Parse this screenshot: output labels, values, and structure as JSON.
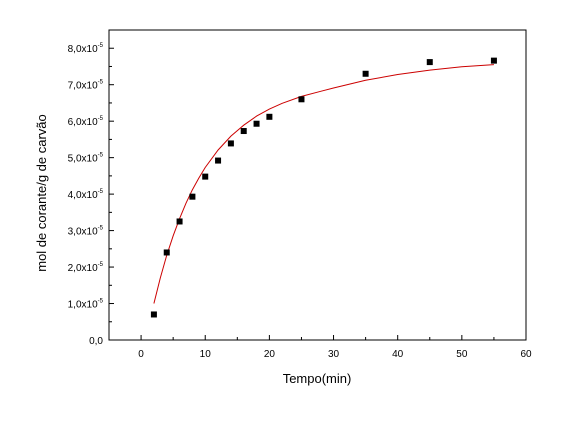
{
  "chart_data": {
    "type": "scatter",
    "title": "",
    "xlabel": "Tempo(min)",
    "ylabel": "mol de corante/g de carvão",
    "xlim": [
      -5,
      60
    ],
    "ylim": [
      0,
      8.5
    ],
    "x_ticks": [
      0,
      10,
      20,
      30,
      40,
      50,
      60
    ],
    "x_tick_labels": [
      "0",
      "10",
      "20",
      "30",
      "40",
      "50",
      "60"
    ],
    "y_ticks": [
      0,
      1,
      2,
      3,
      4,
      5,
      6,
      7,
      8
    ],
    "y_tick_labels": [
      {
        "mantissa": "0,0",
        "exp": ""
      },
      {
        "mantissa": "1,0x10",
        "exp": "-5"
      },
      {
        "mantissa": "2,0x10",
        "exp": "-5"
      },
      {
        "mantissa": "3,0x10",
        "exp": "-5"
      },
      {
        "mantissa": "4,0x10",
        "exp": "-5"
      },
      {
        "mantissa": "5,0x10",
        "exp": "-5"
      },
      {
        "mantissa": "6,0x10",
        "exp": "-5"
      },
      {
        "mantissa": "7,0x10",
        "exp": "-5"
      },
      {
        "mantissa": "8,0x10",
        "exp": "-5"
      }
    ],
    "y_scale_factor": "1e-5",
    "grid": false,
    "series": [
      {
        "type": "scatter",
        "marker": "square",
        "color": "#000000",
        "x": [
          2,
          4,
          6,
          8,
          10,
          12,
          14,
          16,
          18,
          20,
          25,
          35,
          45,
          55
        ],
        "y": [
          0.7,
          2.4,
          3.25,
          3.93,
          4.48,
          4.92,
          5.39,
          5.73,
          5.93,
          6.12,
          6.6,
          7.3,
          7.62,
          7.66
        ]
      },
      {
        "type": "line",
        "color": "#cc0000",
        "x": [
          2,
          3,
          4,
          5,
          6,
          7,
          8,
          9,
          10,
          12,
          14,
          16,
          18,
          20,
          22,
          25,
          28,
          30,
          35,
          40,
          45,
          50,
          55
        ],
        "y": [
          1.0,
          1.7,
          2.32,
          2.86,
          3.33,
          3.75,
          4.12,
          4.44,
          4.73,
          5.21,
          5.59,
          5.89,
          6.14,
          6.33,
          6.49,
          6.68,
          6.82,
          6.91,
          7.12,
          7.28,
          7.4,
          7.49,
          7.55
        ]
      }
    ]
  }
}
